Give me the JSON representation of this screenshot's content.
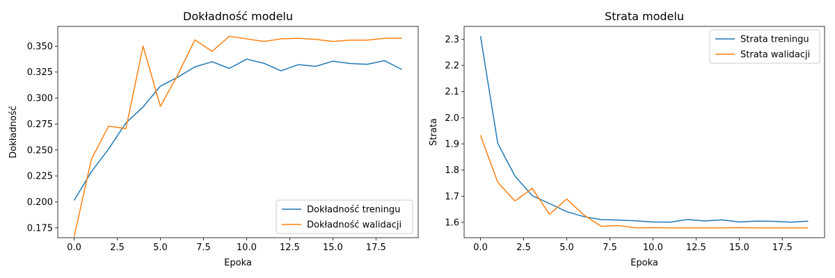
{
  "chart_data": [
    {
      "type": "line",
      "title": "Dokładność modelu",
      "xlabel": "Epoka",
      "ylabel": "Dokładność",
      "xlim": [
        -0.95,
        19.95
      ],
      "ylim": [
        0.1655,
        0.369
      ],
      "xticks": [
        0,
        2.5,
        5,
        7.5,
        10,
        12.5,
        15,
        17.5
      ],
      "xtick_labels": [
        "0.0",
        "2.5",
        "5.0",
        "7.5",
        "10.0",
        "12.5",
        "15.0",
        "17.5"
      ],
      "yticks": [
        0.175,
        0.2,
        0.225,
        0.25,
        0.275,
        0.3,
        0.325,
        0.35
      ],
      "ytick_labels": [
        "0.175",
        "0.200",
        "0.225",
        "0.250",
        "0.275",
        "0.300",
        "0.325",
        "0.350"
      ],
      "legend_position": "lower right",
      "grid": false,
      "x": [
        0,
        1,
        2,
        3,
        4,
        5,
        6,
        7,
        8,
        9,
        10,
        11,
        12,
        13,
        14,
        15,
        16,
        17,
        18,
        19
      ],
      "series": [
        {
          "name": "Dokładność treningu",
          "color": "#1f77b4",
          "values": [
            0.2015,
            0.229,
            0.251,
            0.276,
            0.2915,
            0.3115,
            0.32,
            0.33,
            0.335,
            0.3285,
            0.3375,
            0.3335,
            0.3262,
            0.3322,
            0.3305,
            0.3355,
            0.3333,
            0.3325,
            0.336,
            0.3275
          ]
        },
        {
          "name": "Dokładność walidacji",
          "color": "#ff7f0e",
          "values": [
            0.1665,
            0.241,
            0.273,
            0.2705,
            0.35,
            0.292,
            0.322,
            0.356,
            0.345,
            0.3595,
            0.357,
            0.3545,
            0.357,
            0.3575,
            0.3565,
            0.3545,
            0.3558,
            0.3558,
            0.3575,
            0.3575
          ]
        }
      ]
    },
    {
      "type": "line",
      "title": "Strata modelu",
      "xlabel": "Epoka",
      "ylabel": "Strata",
      "xlim": [
        -0.95,
        19.95
      ],
      "ylim": [
        1.5415,
        2.349
      ],
      "xticks": [
        0,
        2.5,
        5,
        7.5,
        10,
        12.5,
        15,
        17.5
      ],
      "xtick_labels": [
        "0.0",
        "2.5",
        "5.0",
        "7.5",
        "10.0",
        "12.5",
        "15.0",
        "17.5"
      ],
      "yticks": [
        1.6,
        1.7,
        1.8,
        1.9,
        2.0,
        2.1,
        2.2,
        2.3
      ],
      "ytick_labels": [
        "1.6",
        "1.7",
        "1.8",
        "1.9",
        "2.0",
        "2.1",
        "2.2",
        "2.3"
      ],
      "legend_position": "upper right",
      "grid": false,
      "x": [
        0,
        1,
        2,
        3,
        4,
        5,
        6,
        7,
        8,
        9,
        10,
        11,
        12,
        13,
        14,
        15,
        16,
        17,
        18,
        19
      ],
      "series": [
        {
          "name": "Strata treningu",
          "color": "#1f77b4",
          "values": [
            2.312,
            1.902,
            1.777,
            1.702,
            1.672,
            1.641,
            1.622,
            1.6105,
            1.609,
            1.606,
            1.6015,
            1.601,
            1.611,
            1.6055,
            1.6095,
            1.6015,
            1.605,
            1.604,
            1.601,
            1.6045
          ]
        },
        {
          "name": "Strata walidacji",
          "color": "#ff7f0e",
          "values": [
            1.933,
            1.753,
            1.682,
            1.73,
            1.631,
            1.689,
            1.628,
            1.585,
            1.588,
            1.579,
            1.58,
            1.579,
            1.579,
            1.579,
            1.579,
            1.58,
            1.579,
            1.579,
            1.579,
            1.579
          ]
        }
      ]
    }
  ]
}
